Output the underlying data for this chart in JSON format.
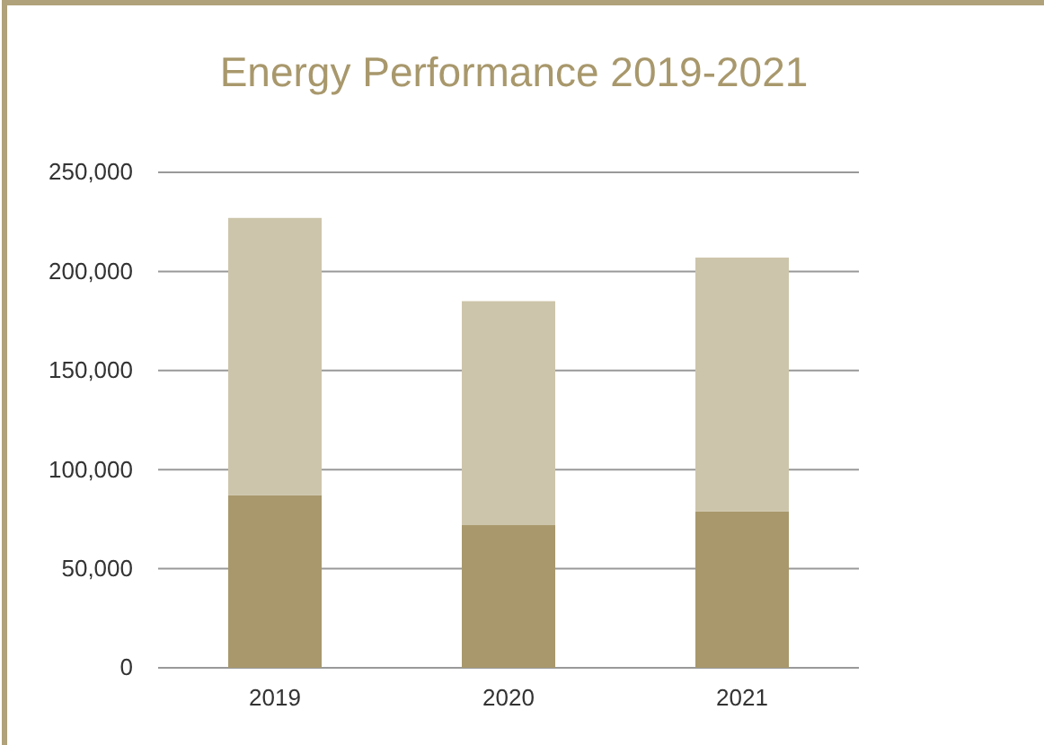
{
  "chart_data": {
    "type": "bar",
    "title": "Energy Performance 2019-2021",
    "categories": [
      "2019",
      "2020",
      "2021"
    ],
    "stacked": true,
    "series": [
      {
        "color": "#a8986c",
        "values": [
          87000,
          72000,
          79000
        ]
      },
      {
        "color": "#cdc5ab",
        "values": [
          140000,
          113000,
          128000
        ]
      }
    ],
    "ylim": [
      0,
      250000
    ],
    "yticks": [
      {
        "value": 0,
        "label": "0"
      },
      {
        "value": 50000,
        "label": "50,000"
      },
      {
        "value": 100000,
        "label": "100,000"
      },
      {
        "value": 150000,
        "label": "150,000"
      },
      {
        "value": 200000,
        "label": "200,000"
      },
      {
        "value": 250000,
        "label": "250,000"
      }
    ],
    "grid": "y"
  }
}
